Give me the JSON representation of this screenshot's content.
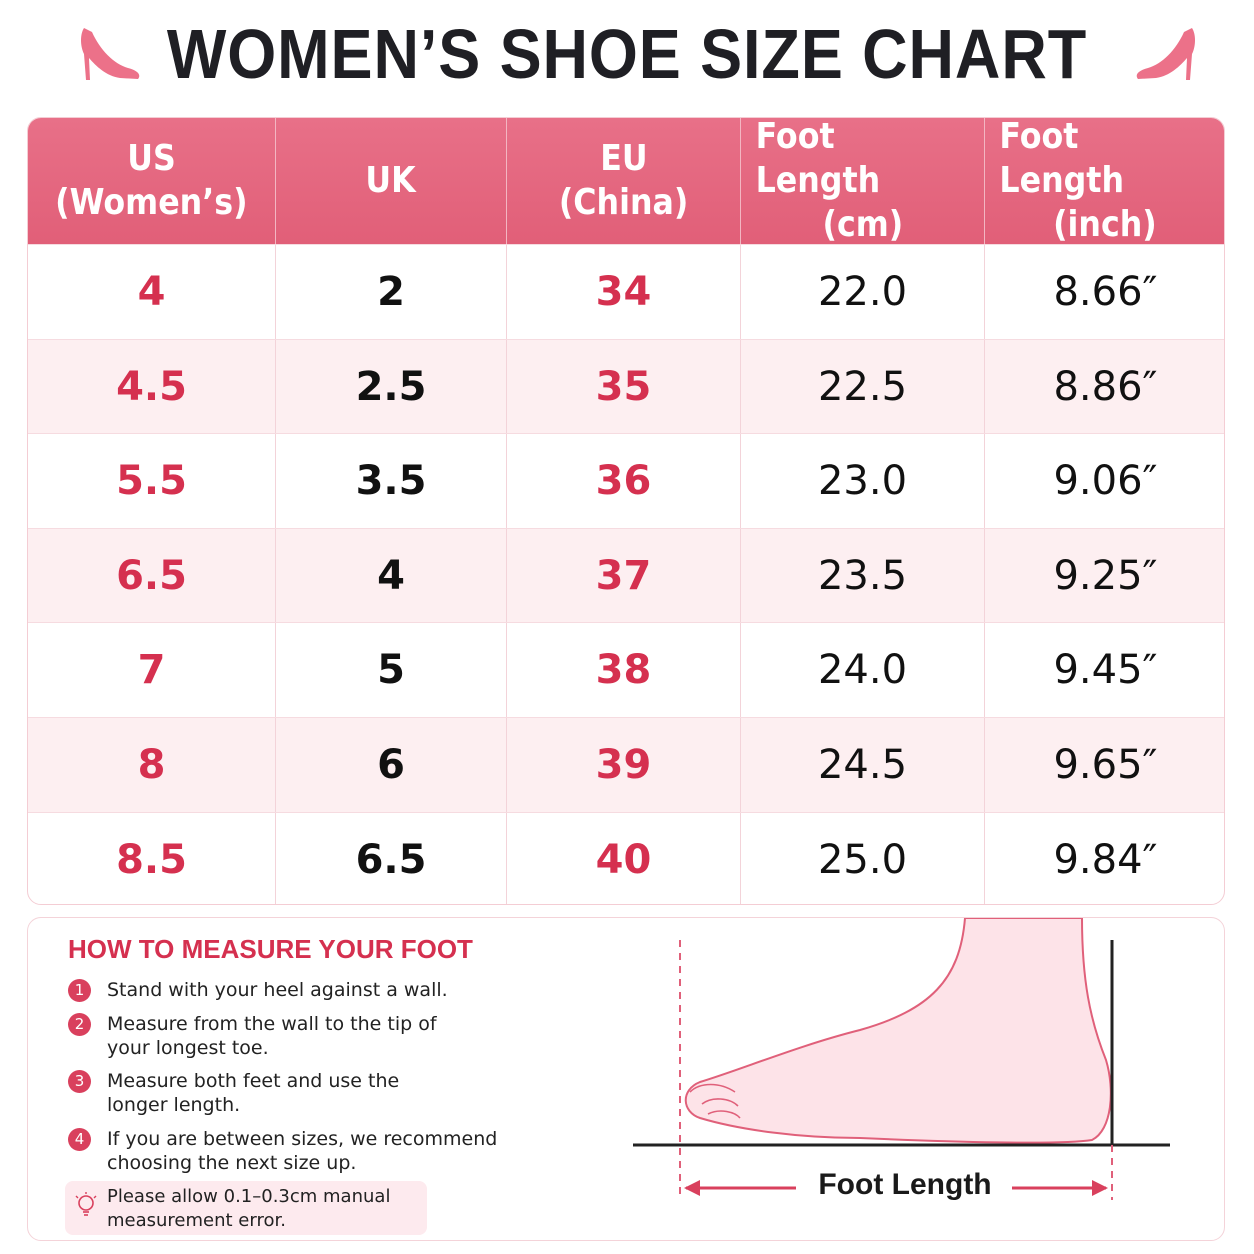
{
  "header": {
    "title": "WOMEN’S SHOE SIZE CHART"
  },
  "table": {
    "columns": [
      [
        "US",
        "(Women’s)"
      ],
      [
        "UK"
      ],
      [
        "EU",
        "(China)"
      ],
      [
        "Foot Length",
        "(cm)"
      ],
      [
        "Foot Length",
        "(inch)"
      ]
    ],
    "rows": [
      [
        "4",
        "2",
        "34",
        "22.0",
        "8.66″"
      ],
      [
        "4.5",
        "2.5",
        "35",
        "22.5",
        "8.86″"
      ],
      [
        "5.5",
        "3.5",
        "36",
        "23.0",
        "9.06″"
      ],
      [
        "6.5",
        "4",
        "37",
        "23.5",
        "9.25″"
      ],
      [
        "7",
        "5",
        "38",
        "24.0",
        "9.45″"
      ],
      [
        "8",
        "6",
        "39",
        "24.5",
        "9.65″"
      ],
      [
        "8.5",
        "6.5",
        "40",
        "25.0",
        "9.84″"
      ]
    ]
  },
  "guide": {
    "title": "HOW TO MEASURE YOUR FOOT",
    "steps": [
      {
        "number": "1",
        "text": "Stand with your heel against a wall."
      },
      {
        "number": "2",
        "text": "Measure from the wall to the tip of your longest toe."
      },
      {
        "number": "3",
        "text": "Measure both feet and use the longer length."
      },
      {
        "number": "4",
        "text": "If you are between sizes, we recommend choosing the next size up."
      }
    ],
    "note": "Please allow 0.1–0.3cm manual measurement error.",
    "diagram_label": "Foot Length"
  }
}
